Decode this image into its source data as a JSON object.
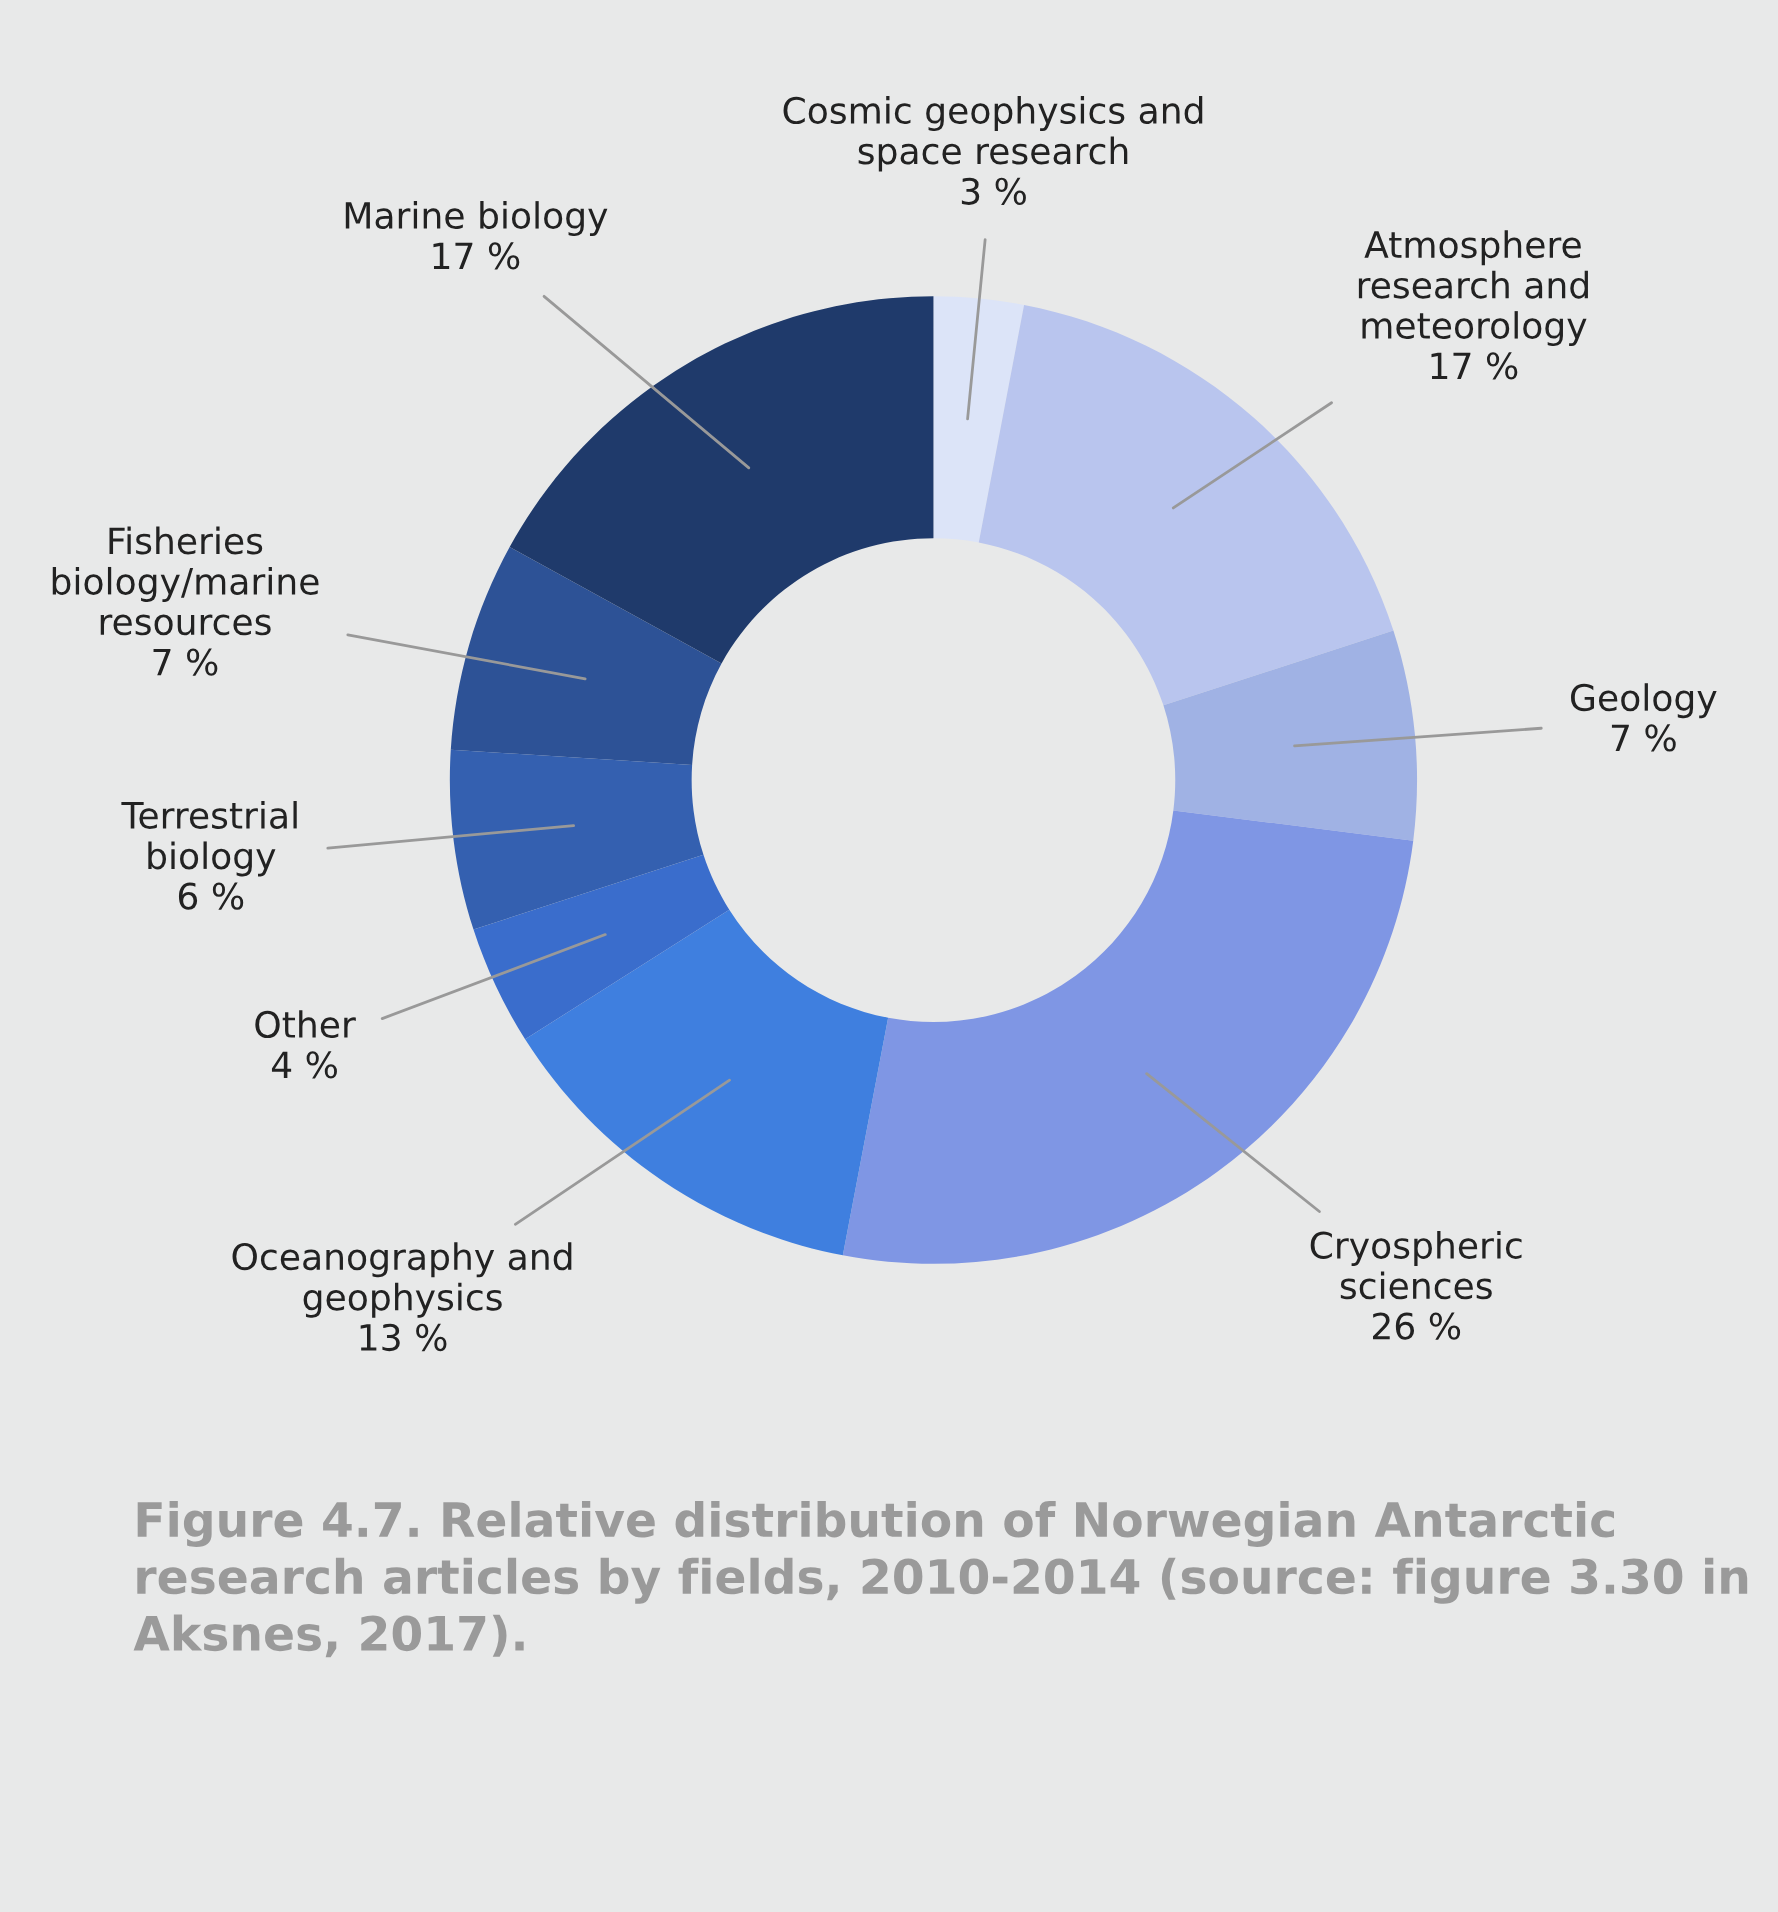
{
  "chart_data": {
    "type": "donut",
    "categories": [
      "Cosmic geophysics and\nspace research",
      "Atmosphere\nresearch and\nmeteorology",
      "Geology",
      "Cryospheric\nsciences",
      "Oceanography and\ngeophysics",
      "Other",
      "Terrestrial\nbiology",
      "Fisheries\nbiology/marine\nresources",
      "Marine biology"
    ],
    "values": [
      3,
      17,
      7,
      26,
      13,
      4,
      6,
      7,
      17
    ],
    "value_labels": [
      "3 %",
      "17 %",
      "7 %",
      "26 %",
      "13 %",
      "4 %",
      "6 %",
      "7 %",
      "17 %"
    ],
    "colors": [
      "#dce4f8",
      "#b9c5ee",
      "#a0b2e4",
      "#7f96e4",
      "#3f7fdf",
      "#3a6dcc",
      "#3460b0",
      "#2d5296",
      "#1f3a6b"
    ],
    "annotations": [
      "Figure 4.7. Relative distribution of Norwegian Antarctic research articles by fields, 2010-2014 (source: figure 3.30 in Aksnes, 2017)."
    ],
    "legend": false
  }
}
